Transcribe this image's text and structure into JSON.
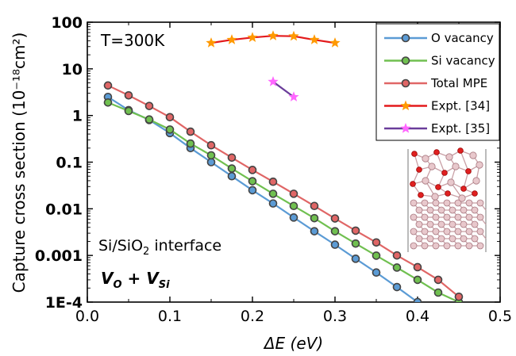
{
  "chart_data": {
    "type": "line",
    "x_scale": "linear",
    "y_scale": "log",
    "xlabel": "ΔE (eV)",
    "ylabel": "Capture cross section (10⁻¹⁸cm²)",
    "xlim": [
      0.0,
      0.5
    ],
    "ylim": [
      0.0001,
      100
    ],
    "x_ticks": [
      0.0,
      0.1,
      0.2,
      0.3,
      0.4,
      0.5
    ],
    "x_tick_labels": [
      "0.0",
      "0.1",
      "0.2",
      "0.3",
      "0.4",
      "0.5"
    ],
    "y_ticks": [
      0.0001,
      0.001,
      0.01,
      0.1,
      1,
      10,
      100
    ],
    "y_tick_labels": [
      "1E-4",
      "0.001",
      "0.01",
      "0.1",
      "1",
      "10",
      "100"
    ],
    "grid": false,
    "legend_placement": "top-right",
    "annotations": {
      "temperature": "T=300K",
      "interface_prefix": "Si/SiO",
      "interface_sub": "2",
      "interface_suffix": " interface",
      "defect_v1": "V",
      "defect_v1_sub": "O",
      "defect_plus": " + ",
      "defect_v2": "V",
      "defect_v2_sub": "Si"
    },
    "series": [
      {
        "name": "O vacancy",
        "color": "#5b9bd5",
        "marker": "circle",
        "x": [
          0.025,
          0.05,
          0.075,
          0.1,
          0.125,
          0.15,
          0.175,
          0.2,
          0.225,
          0.25,
          0.275,
          0.3,
          0.325,
          0.35,
          0.375,
          0.4
        ],
        "y": [
          2.5,
          1.3,
          0.8,
          0.42,
          0.2,
          0.1,
          0.05,
          0.025,
          0.013,
          0.0065,
          0.0033,
          0.0017,
          0.00085,
          0.00043,
          0.00021,
          0.0001
        ]
      },
      {
        "name": "Si vacancy",
        "color": "#70c050",
        "marker": "circle",
        "x": [
          0.025,
          0.05,
          0.075,
          0.1,
          0.125,
          0.15,
          0.175,
          0.2,
          0.225,
          0.25,
          0.275,
          0.3,
          0.325,
          0.35,
          0.375,
          0.4,
          0.425,
          0.45
        ],
        "y": [
          1.9,
          1.25,
          0.82,
          0.5,
          0.25,
          0.14,
          0.073,
          0.039,
          0.021,
          0.0115,
          0.0063,
          0.0033,
          0.0018,
          0.00099,
          0.00055,
          0.0003,
          0.00016,
          0.0001
        ]
      },
      {
        "name": "Total MPE",
        "color": "#e06666",
        "marker": "circle",
        "x": [
          0.025,
          0.05,
          0.075,
          0.1,
          0.125,
          0.15,
          0.175,
          0.2,
          0.225,
          0.25,
          0.275,
          0.3,
          0.325,
          0.35,
          0.375,
          0.4,
          0.425,
          0.45
        ],
        "y": [
          4.4,
          2.7,
          1.6,
          0.92,
          0.45,
          0.23,
          0.125,
          0.068,
          0.038,
          0.021,
          0.0115,
          0.0062,
          0.0034,
          0.0019,
          0.001,
          0.00056,
          0.0003,
          0.00013
        ]
      },
      {
        "name": "Expt. [34]",
        "color": "#ff9900",
        "line_color": "#e31a1c",
        "marker": "star",
        "x": [
          0.15,
          0.175,
          0.2,
          0.225,
          0.25,
          0.275,
          0.3
        ],
        "y": [
          36,
          42,
          47,
          51,
          50,
          42,
          36
        ]
      },
      {
        "name": "Expt. [35]",
        "color": "#ff66ff",
        "line_color": "#6a3d9a",
        "marker": "star",
        "x": [
          0.225,
          0.25
        ],
        "y": [
          5.3,
          2.5
        ]
      }
    ]
  }
}
